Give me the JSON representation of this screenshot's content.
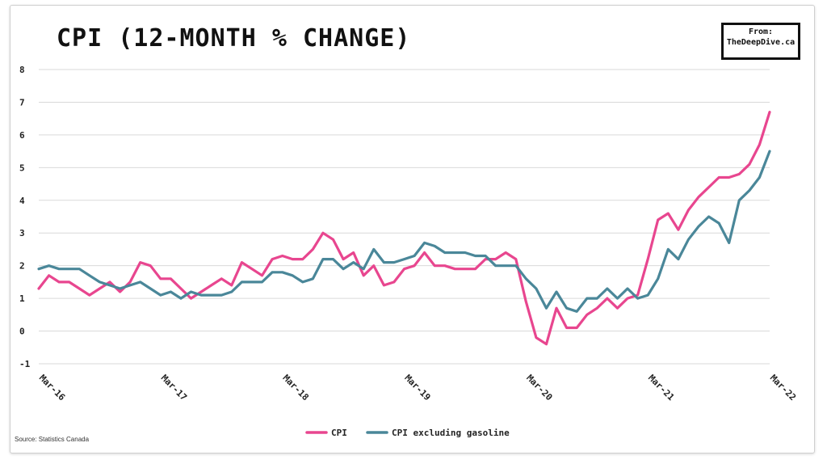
{
  "chart_data": {
    "type": "line",
    "title": "CPI (12-MONTH % CHANGE)",
    "badge": {
      "line1": "From:",
      "line2": "TheDeepDive.ca"
    },
    "source": "Source: Statistics Canada",
    "ylim": [
      -1,
      8
    ],
    "yticks": [
      -1,
      0,
      1,
      2,
      3,
      4,
      5,
      6,
      7,
      8
    ],
    "x_tick_labels": [
      "Mar-16",
      "Mar-17",
      "Mar-18",
      "Mar-19",
      "Mar-20",
      "Mar-21",
      "Mar-22"
    ],
    "x_tick_indices": [
      0,
      12,
      24,
      36,
      48,
      60,
      72
    ],
    "grid": true,
    "legend_position": "bottom",
    "series": [
      {
        "name": "CPI",
        "color": "#e8468f",
        "values": [
          1.3,
          1.7,
          1.5,
          1.5,
          1.3,
          1.1,
          1.3,
          1.5,
          1.2,
          1.5,
          2.1,
          2.0,
          1.6,
          1.6,
          1.3,
          1.0,
          1.2,
          1.4,
          1.6,
          1.4,
          2.1,
          1.9,
          1.7,
          2.2,
          2.3,
          2.2,
          2.2,
          2.5,
          3.0,
          2.8,
          2.2,
          2.4,
          1.7,
          2.0,
          1.4,
          1.5,
          1.9,
          2.0,
          2.4,
          2.0,
          2.0,
          1.9,
          1.9,
          1.9,
          2.2,
          2.2,
          2.4,
          2.2,
          0.9,
          -0.2,
          -0.4,
          0.7,
          0.1,
          0.1,
          0.5,
          0.7,
          1.0,
          0.7,
          1.0,
          1.1,
          2.2,
          3.4,
          3.6,
          3.1,
          3.7,
          4.1,
          4.4,
          4.7,
          4.7,
          4.8,
          5.1,
          5.7,
          6.7
        ]
      },
      {
        "name": "CPI excluding gasoline",
        "color": "#4a8799",
        "values": [
          1.9,
          2.0,
          1.9,
          1.9,
          1.9,
          1.7,
          1.5,
          1.4,
          1.3,
          1.4,
          1.5,
          1.3,
          1.1,
          1.2,
          1.0,
          1.2,
          1.1,
          1.1,
          1.1,
          1.2,
          1.5,
          1.5,
          1.5,
          1.8,
          1.8,
          1.7,
          1.5,
          1.6,
          2.2,
          2.2,
          1.9,
          2.1,
          1.9,
          2.5,
          2.1,
          2.1,
          2.2,
          2.3,
          2.7,
          2.6,
          2.4,
          2.4,
          2.4,
          2.3,
          2.3,
          2.0,
          2.0,
          2.0,
          1.6,
          1.3,
          0.7,
          1.2,
          0.7,
          0.6,
          1.0,
          1.0,
          1.3,
          1.0,
          1.3,
          1.0,
          1.1,
          1.6,
          2.5,
          2.2,
          2.8,
          3.2,
          3.5,
          3.3,
          2.7,
          4.0,
          4.3,
          4.7,
          5.5
        ]
      }
    ]
  }
}
